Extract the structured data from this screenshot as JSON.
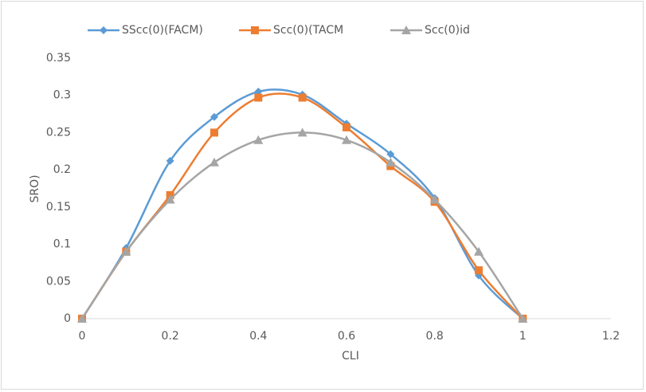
{
  "chart_data": {
    "type": "line",
    "x_label": "CLI",
    "y_label": "SRO)",
    "x": [
      0,
      0.1,
      0.2,
      0.3,
      0.4,
      0.5,
      0.6,
      0.7,
      0.8,
      0.9,
      1
    ],
    "series": [
      {
        "name": "SScc(0)(FACM)",
        "color": "#5b9bd5",
        "marker": "diamond",
        "values": [
          0,
          0.095,
          0.212,
          0.271,
          0.305,
          0.301,
          0.262,
          0.221,
          0.162,
          0.058,
          0
        ]
      },
      {
        "name": "Scc(0)(TACM",
        "color": "#ed7d31",
        "marker": "square",
        "values": [
          0,
          0.09,
          0.166,
          0.25,
          0.297,
          0.297,
          0.257,
          0.205,
          0.157,
          0.065,
          0
        ]
      },
      {
        "name": "Scc(0)id",
        "color": "#a5a5a5",
        "marker": "triangle",
        "values": [
          0,
          0.09,
          0.16,
          0.21,
          0.24,
          0.25,
          0.24,
          0.21,
          0.16,
          0.09,
          0
        ]
      }
    ],
    "xlim": [
      0,
      1.2
    ],
    "xticks": [
      0,
      0.2,
      0.4,
      0.6,
      0.8,
      1,
      1.2
    ],
    "ylim": [
      0,
      0.35
    ],
    "yticks": [
      0,
      0.05,
      0.1,
      0.15,
      0.2,
      0.25,
      0.3,
      0.35
    ],
    "smooth": true,
    "grid": false,
    "legend": "top"
  }
}
